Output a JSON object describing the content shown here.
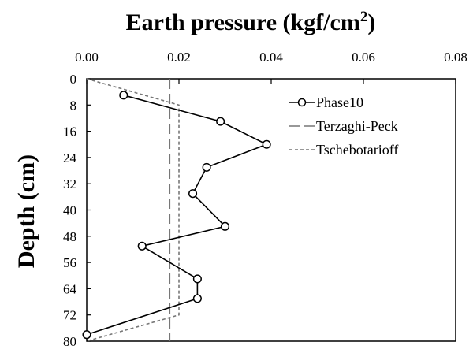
{
  "chart_data": {
    "type": "line",
    "title": "Earth pressure (kgf/cm",
    "title_superscript": "2",
    "title_suffix": ")",
    "xlabel": "Earth pressure (kgf/cm2)",
    "ylabel": "Depth (cm)",
    "x_axis_position": "top",
    "y_axis_inverted": true,
    "xlim": [
      0,
      0.08
    ],
    "ylim": [
      0,
      80
    ],
    "xticks": [
      0,
      0.02,
      0.04,
      0.06,
      0.08
    ],
    "xtick_labels": [
      "0.00",
      "0.02",
      "0.04",
      "0.06",
      "0.08"
    ],
    "yticks": [
      0,
      8,
      16,
      24,
      32,
      40,
      48,
      56,
      64,
      72,
      80
    ],
    "ytick_labels": [
      "0",
      "8",
      "16",
      "24",
      "32",
      "40",
      "48",
      "56",
      "64",
      "72",
      "80"
    ],
    "grid": false,
    "legend_position": "top-right",
    "series": [
      {
        "name": "Phase10",
        "style": "solid-with-circle-markers",
        "color": "#000000",
        "points": [
          [
            0.008,
            5
          ],
          [
            0.029,
            13
          ],
          [
            0.039,
            20
          ],
          [
            0.026,
            27
          ],
          [
            0.023,
            35
          ],
          [
            0.03,
            45
          ],
          [
            0.012,
            51
          ],
          [
            0.024,
            61
          ],
          [
            0.024,
            67
          ],
          [
            0.0,
            78
          ]
        ]
      },
      {
        "name": "Terzaghi-Peck",
        "style": "long-dash",
        "color": "#777777",
        "points": [
          [
            0.018,
            0
          ],
          [
            0.018,
            80
          ]
        ]
      },
      {
        "name": "Tschebotarioff",
        "style": "short-dash",
        "color": "#777777",
        "points": [
          [
            0.0,
            0
          ],
          [
            0.02,
            8
          ],
          [
            0.02,
            72
          ],
          [
            0.0,
            80
          ]
        ]
      }
    ]
  }
}
